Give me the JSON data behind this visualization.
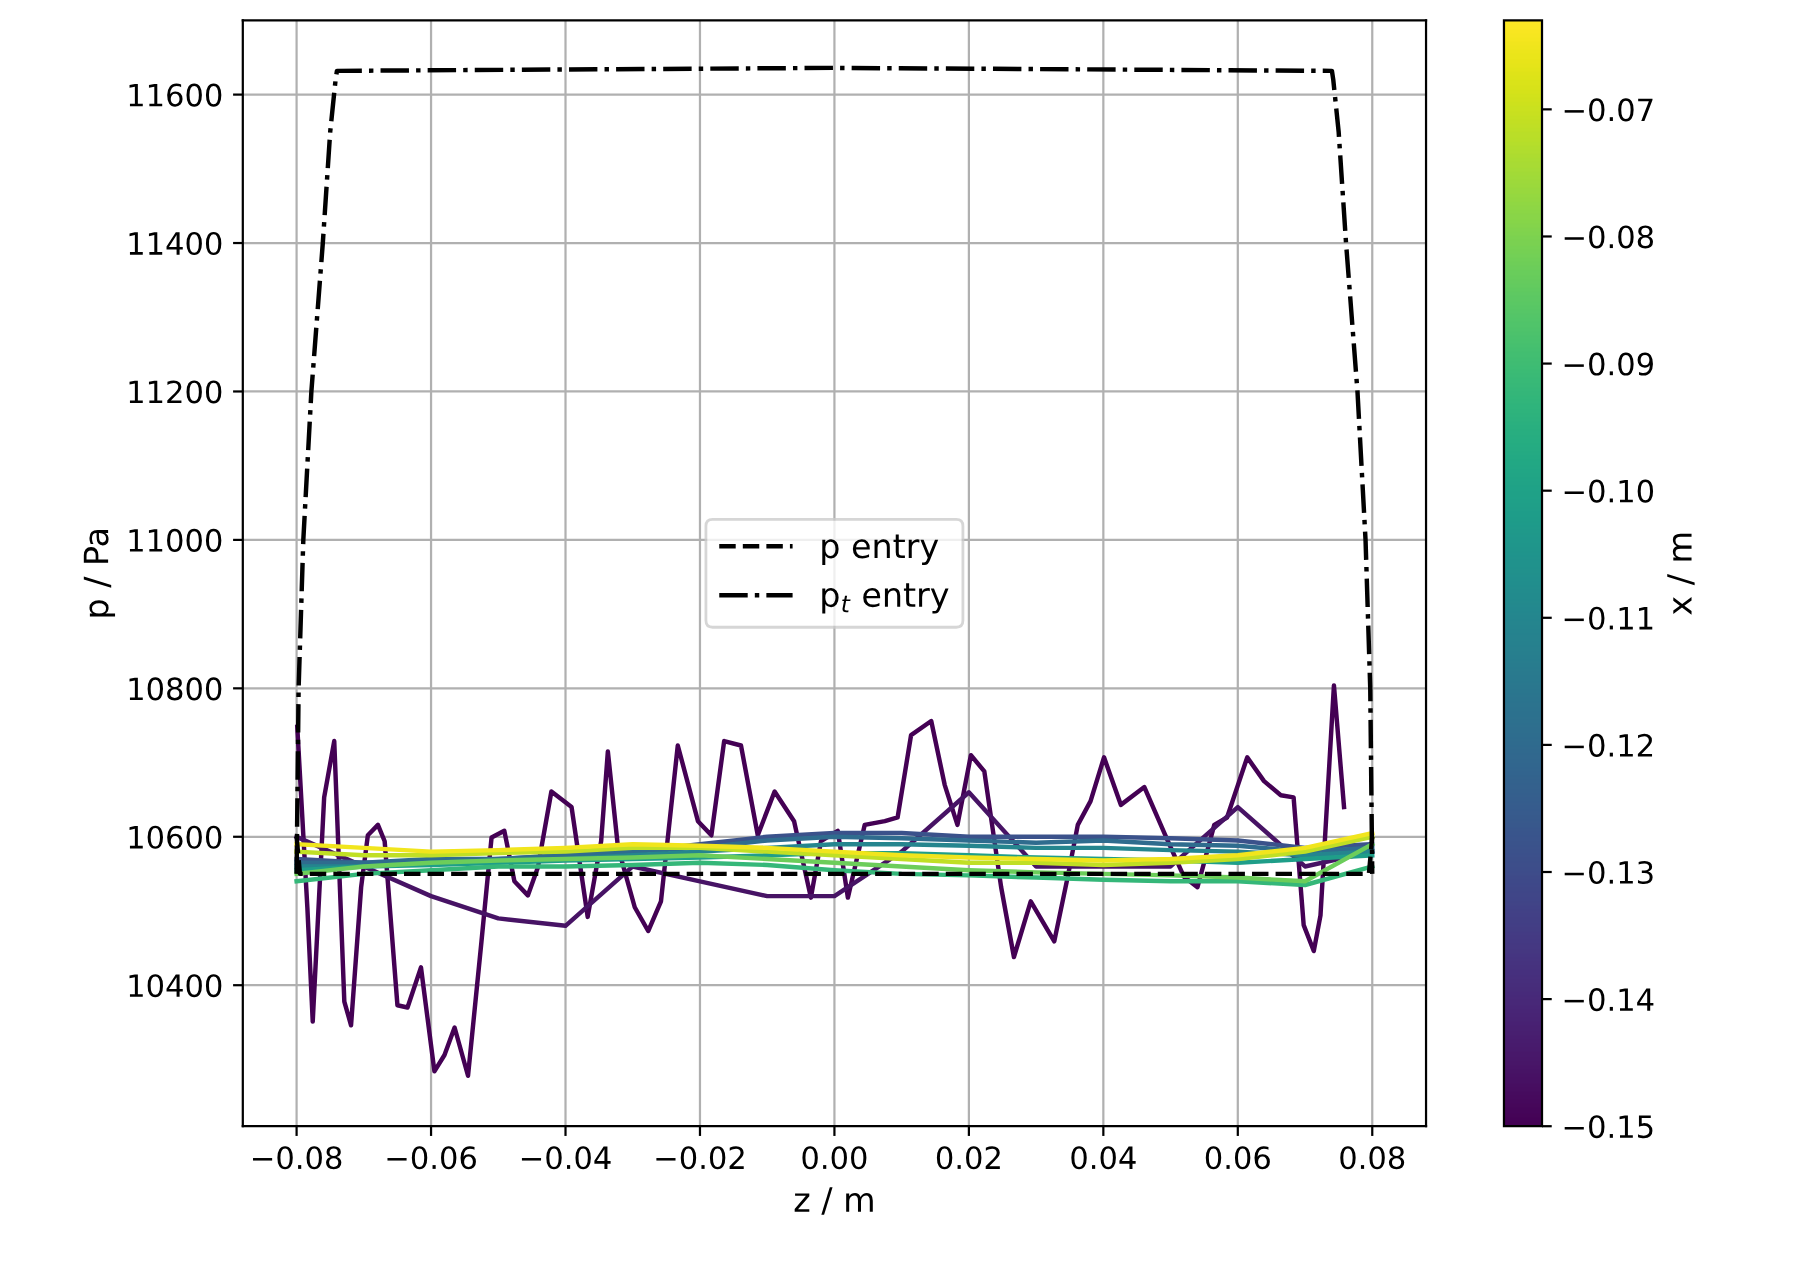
{
  "chart_data": {
    "type": "line",
    "xlabel": "z / m",
    "ylabel": "p / Pa",
    "clabel": "x / m",
    "xlim": [
      -0.088,
      0.088
    ],
    "ylim": [
      10210,
      11700
    ],
    "xticks": [
      {
        "value": -0.08,
        "label": "−0.08"
      },
      {
        "value": -0.06,
        "label": "−0.06"
      },
      {
        "value": -0.04,
        "label": "−0.04"
      },
      {
        "value": -0.02,
        "label": "−0.02"
      },
      {
        "value": 0,
        "label": "0.00"
      },
      {
        "value": 0.02,
        "label": "0.02"
      },
      {
        "value": 0.04,
        "label": "0.04"
      },
      {
        "value": 0.06,
        "label": "0.06"
      },
      {
        "value": 0.08,
        "label": "0.08"
      }
    ],
    "yticks": [
      10400,
      10600,
      10800,
      11000,
      11200,
      11400,
      11600
    ],
    "clim": [
      -0.15,
      -0.063
    ],
    "cticks": [
      {
        "value": -0.15,
        "label": "−0.15"
      },
      {
        "value": -0.14,
        "label": "−0.14"
      },
      {
        "value": -0.13,
        "label": "−0.13"
      },
      {
        "value": -0.12,
        "label": "−0.12"
      },
      {
        "value": -0.11,
        "label": "−0.11"
      },
      {
        "value": -0.1,
        "label": "−0.10"
      },
      {
        "value": -0.09,
        "label": "−0.09"
      },
      {
        "value": -0.08,
        "label": "−0.08"
      },
      {
        "value": -0.07,
        "label": "−0.07"
      }
    ],
    "grid": true,
    "legend": "center",
    "series": [
      {
        "color": "#440154",
        "x": [
          -0.0799,
          -0.0784,
          -0.0776,
          -0.0759,
          -0.0744,
          -0.0729,
          -0.0719,
          -0.0704,
          -0.0694,
          -0.0679,
          -0.0669,
          -0.065,
          -0.0635,
          -0.0615,
          -0.0595,
          -0.058,
          -0.0565,
          -0.0545,
          -0.0525,
          -0.051,
          -0.0491,
          -0.0476,
          -0.0456,
          -0.0441,
          -0.0421,
          -0.0391,
          -0.0367,
          -0.0347,
          -0.0337,
          -0.0322,
          -0.0297,
          -0.0277,
          -0.0258,
          -0.0233,
          -0.0203,
          -0.0183,
          -0.0164,
          -0.0139,
          -0.0114,
          -0.0089,
          -0.006,
          -0.0035,
          -0.002,
          0.0005,
          0.002,
          0.0045,
          0.0075,
          0.0094,
          0.0114,
          0.0144,
          0.0164,
          0.0183,
          0.0203,
          0.0223,
          0.0248,
          0.0267,
          0.0292,
          0.0327,
          0.0347,
          0.0362,
          0.0381,
          0.0401,
          0.0426,
          0.0461,
          0.0496,
          0.052,
          0.054,
          0.0565,
          0.0584,
          0.0614,
          0.0639,
          0.0664,
          0.0683,
          0.0698,
          0.0713,
          0.0723,
          0.0743,
          0.0758
        ],
        "values": [
          10748,
          10505,
          10351,
          10653,
          10729,
          10378,
          10346,
          10532,
          10602,
          10616,
          10594,
          10373,
          10370,
          10424,
          10284,
          10306,
          10343,
          10278,
          10459,
          10599,
          10608,
          10540,
          10521,
          10559,
          10661,
          10640,
          10492,
          10594,
          10715,
          10586,
          10505,
          10473,
          10513,
          10723,
          10621,
          10602,
          10729,
          10723,
          10602,
          10661,
          10621,
          10518,
          10594,
          10608,
          10518,
          10616,
          10621,
          10626,
          10737,
          10756,
          10670,
          10616,
          10710,
          10688,
          10532,
          10438,
          10513,
          10459,
          10546,
          10616,
          10648,
          10707,
          10643,
          10667,
          10594,
          10546,
          10532,
          10616,
          10626,
          10707,
          10675,
          10656,
          10653,
          10481,
          10446,
          10494,
          10804,
          10640
        ]
      },
      {
        "color": "#471365",
        "x": [
          -0.08,
          -0.07,
          -0.06,
          -0.05,
          -0.04,
          -0.03,
          -0.02,
          -0.01,
          0,
          0.01,
          0.02,
          0.03,
          0.04,
          0.05,
          0.06,
          0.07,
          0.08
        ],
        "values": [
          10600,
          10560,
          10520,
          10490,
          10480,
          10560,
          10540,
          10520,
          10520,
          10580,
          10660,
          10560,
          10560,
          10560,
          10640,
          10560,
          10580
        ]
      },
      {
        "color": "#3b528b",
        "x": [
          -0.08,
          -0.07,
          -0.06,
          -0.05,
          -0.04,
          -0.03,
          -0.02,
          -0.01,
          0,
          0.01,
          0.02,
          0.03,
          0.04,
          0.05,
          0.06,
          0.07,
          0.08
        ],
        "values": [
          10570,
          10565,
          10565,
          10570,
          10575,
          10580,
          10590,
          10600,
          10605,
          10605,
          10600,
          10600,
          10600,
          10598,
          10595,
          10585,
          10590
        ]
      },
      {
        "color": "#2f6c8e",
        "x": [
          -0.08,
          -0.07,
          -0.06,
          -0.05,
          -0.04,
          -0.03,
          -0.02,
          -0.01,
          0,
          0.01,
          0.02,
          0.03,
          0.04,
          0.05,
          0.06,
          0.07,
          0.08
        ],
        "values": [
          10565,
          10565,
          10570,
          10570,
          10575,
          10580,
          10585,
          10595,
          10600,
          10598,
          10595,
          10592,
          10595,
          10590,
          10588,
          10580,
          10585
        ]
      },
      {
        "color": "#25858e",
        "x": [
          -0.08,
          -0.07,
          -0.06,
          -0.05,
          -0.04,
          -0.03,
          -0.02,
          -0.01,
          0,
          0.01,
          0.02,
          0.03,
          0.04,
          0.05,
          0.06,
          0.07,
          0.08
        ],
        "values": [
          10560,
          10560,
          10565,
          10568,
          10570,
          10575,
          10580,
          10585,
          10590,
          10590,
          10588,
          10585,
          10585,
          10582,
          10580,
          10575,
          10580
        ]
      },
      {
        "color": "#1f9e89",
        "x": [
          -0.08,
          -0.07,
          -0.06,
          -0.05,
          -0.04,
          -0.03,
          -0.02,
          -0.01,
          0,
          0.01,
          0.02,
          0.03,
          0.04,
          0.05,
          0.06,
          0.07,
          0.08
        ],
        "values": [
          10555,
          10560,
          10562,
          10565,
          10568,
          10570,
          10572,
          10575,
          10578,
          10578,
          10575,
          10572,
          10570,
          10568,
          10565,
          10570,
          10575
        ]
      },
      {
        "color": "#35b779",
        "x": [
          -0.08,
          -0.07,
          -0.06,
          -0.05,
          -0.04,
          -0.03,
          -0.02,
          -0.01,
          0,
          0.01,
          0.02,
          0.03,
          0.04,
          0.05,
          0.06,
          0.07,
          0.08
        ],
        "values": [
          10540,
          10550,
          10555,
          10560,
          10560,
          10562,
          10565,
          10562,
          10555,
          10550,
          10548,
          10545,
          10542,
          10540,
          10540,
          10535,
          10560
        ]
      },
      {
        "color": "#6ccd5a",
        "x": [
          -0.08,
          -0.07,
          -0.06,
          -0.05,
          -0.04,
          -0.03,
          -0.02,
          -0.01,
          0,
          0.01,
          0.02,
          0.03,
          0.04,
          0.05,
          0.06,
          0.07,
          0.08
        ],
        "values": [
          10550,
          10560,
          10565,
          10568,
          10570,
          10572,
          10575,
          10570,
          10565,
          10560,
          10555,
          10552,
          10550,
          10548,
          10545,
          10540,
          10590
        ]
      },
      {
        "color": "#c0df25",
        "x": [
          -0.08,
          -0.07,
          -0.06,
          -0.05,
          -0.04,
          -0.03,
          -0.02,
          -0.01,
          0,
          0.01,
          0.02,
          0.03,
          0.04,
          0.05,
          0.06,
          0.07,
          0.08
        ],
        "values": [
          10580,
          10575,
          10575,
          10578,
          10580,
          10585,
          10585,
          10580,
          10575,
          10570,
          10565,
          10565,
          10562,
          10565,
          10570,
          10580,
          10600
        ]
      },
      {
        "color": "#f1e51d",
        "x": [
          -0.08,
          -0.07,
          -0.06,
          -0.05,
          -0.04,
          -0.03,
          -0.02,
          -0.01,
          0,
          0.01,
          0.02,
          0.03,
          0.04,
          0.05,
          0.06,
          0.07,
          0.08
        ],
        "values": [
          10590,
          10585,
          10580,
          10582,
          10585,
          10590,
          10588,
          10585,
          10580,
          10575,
          10572,
          10570,
          10568,
          10570,
          10575,
          10585,
          10605
        ]
      },
      {
        "name": "p entry",
        "color": "#000000",
        "line_style": "dashed",
        "x": [
          -0.08,
          -0.0795,
          0.0795,
          0.08
        ],
        "values": [
          10600,
          10550,
          10550,
          10600
        ]
      },
      {
        "name": "p$_{t}$ entry",
        "color": "#000000",
        "line_style": "dashdot",
        "x": [
          -0.08,
          -0.0797,
          -0.079,
          -0.0778,
          -0.0761,
          -0.075,
          -0.0742,
          -0.074,
          0,
          0.074,
          0.0742,
          0.075,
          0.0761,
          0.0778,
          0.079,
          0.0797,
          0.08
        ],
        "values": [
          10550,
          10800,
          11000,
          11200,
          11400,
          11550,
          11620,
          11632,
          11636,
          11632,
          11620,
          11550,
          11400,
          11200,
          11000,
          10800,
          10550
        ]
      }
    ]
  }
}
